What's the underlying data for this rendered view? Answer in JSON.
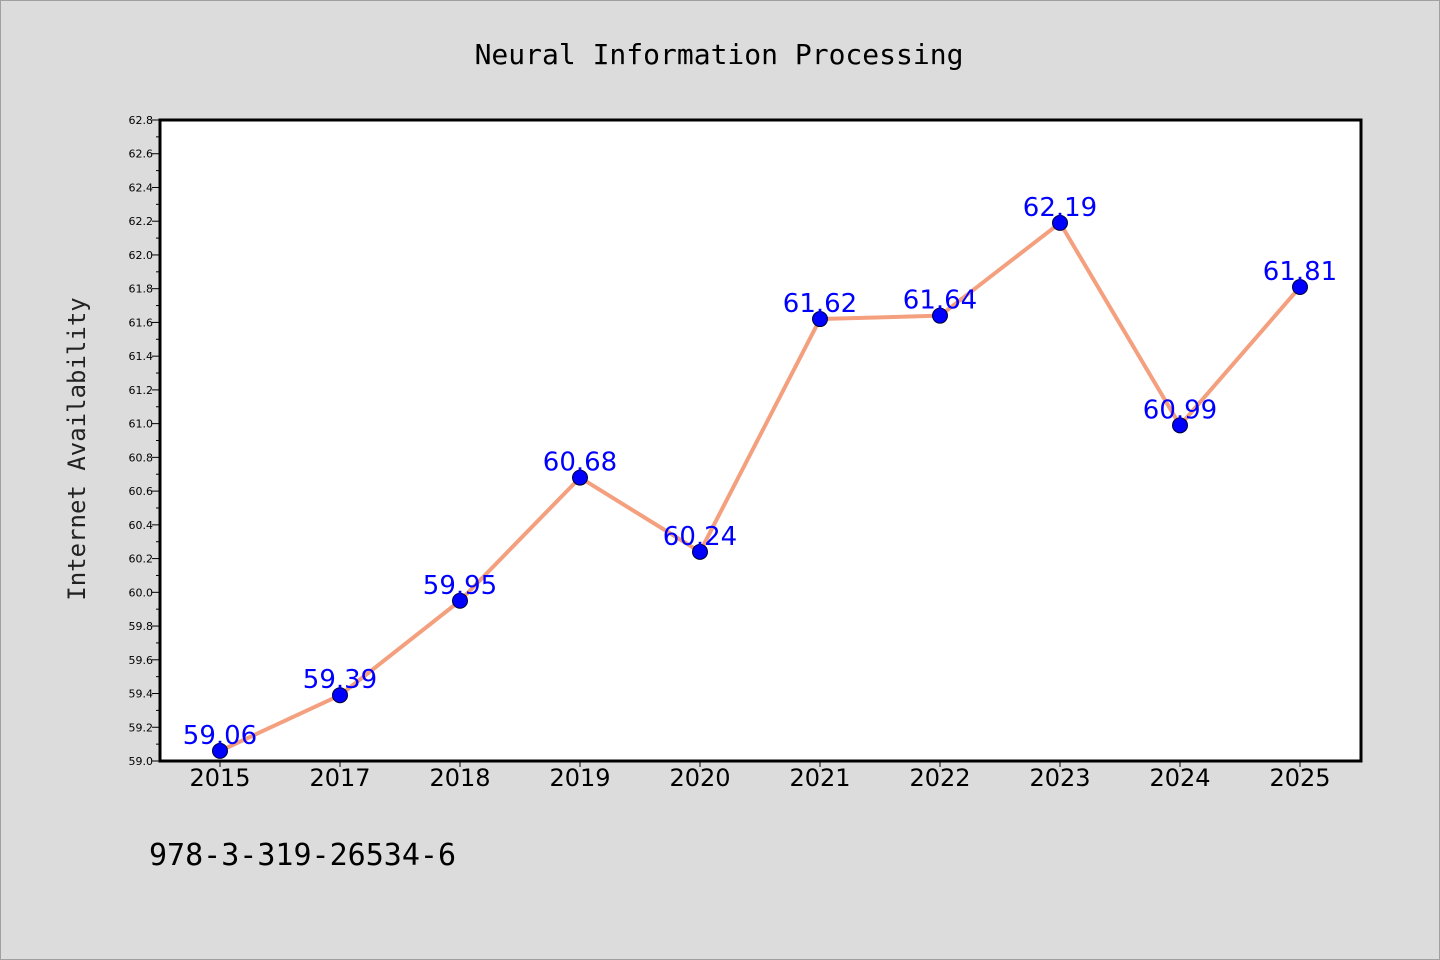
{
  "chart_data": {
    "type": "line",
    "title": "Neural Information Processing",
    "xlabel": "",
    "ylabel": "Internet Availability",
    "categories": [
      "2015",
      "2017",
      "2018",
      "2019",
      "2020",
      "2021",
      "2022",
      "2023",
      "2024",
      "2025"
    ],
    "series": [
      {
        "values": [
          59.06,
          59.39,
          59.95,
          60.68,
          60.24,
          61.62,
          61.64,
          62.19,
          60.99,
          61.81
        ]
      }
    ],
    "ylim": [
      59.0,
      62.8
    ],
    "yticks": [
      "59.0",
      "59.2",
      "59.4",
      "59.6",
      "59.8",
      "60.0",
      "60.2",
      "60.4",
      "60.6",
      "60.8",
      "61.0",
      "61.2",
      "61.4",
      "61.6",
      "61.8",
      "62.0",
      "62.2",
      "62.4",
      "62.6",
      "62.8"
    ],
    "data_labels": [
      "59.06",
      "59.39",
      "59.95",
      "60.68",
      "60.24",
      "61.62",
      "61.64",
      "62.19",
      "60.99",
      "61.81"
    ],
    "grid": false,
    "legend": "none",
    "line_color": "#f4a07e",
    "marker_color": "#0000ff",
    "label_color": "#0000ff",
    "plot_background": "#ffffff",
    "page_background": "#dcdcdc"
  },
  "footer": {
    "isbn": "978-3-319-26534-6"
  }
}
